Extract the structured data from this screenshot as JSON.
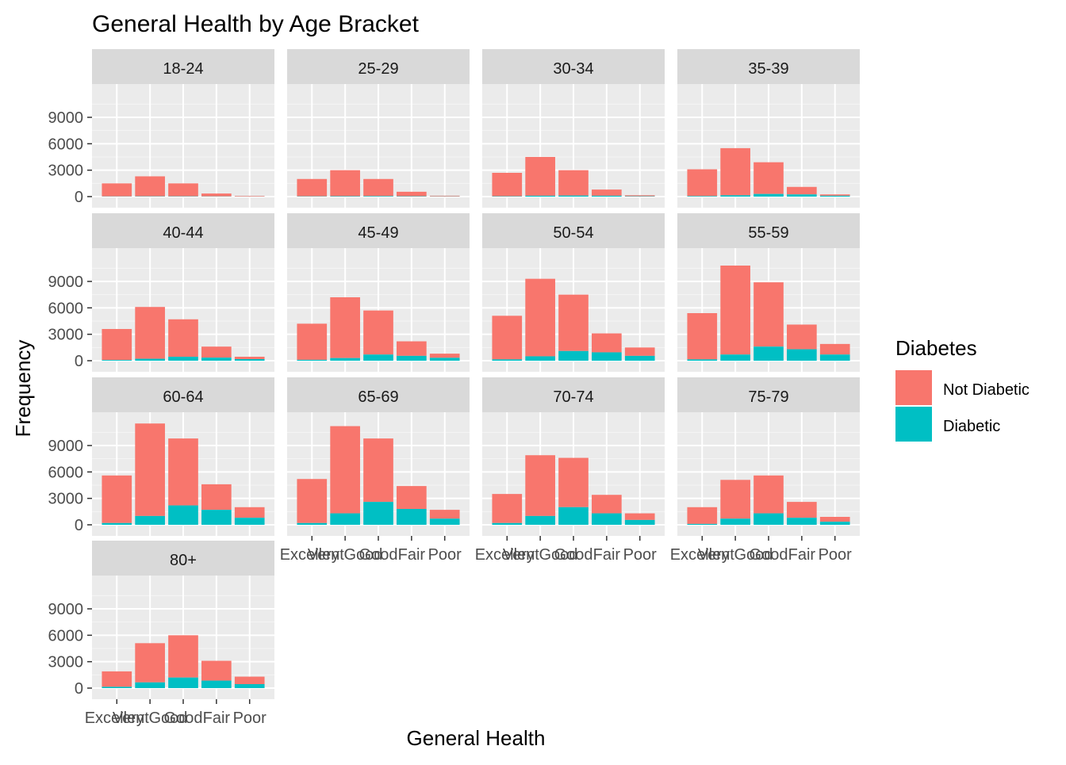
{
  "chart_data": {
    "type": "bar",
    "stacked": true,
    "faceted": true,
    "title": "General Health by Age Bracket",
    "xlabel": "General Health",
    "ylabel": "Frequency",
    "legend": {
      "title": "Diabetes",
      "placement": "right",
      "entries": [
        {
          "name": "Not Diabetic",
          "color": "#F8766D"
        },
        {
          "name": "Diabetic",
          "color": "#00BFC4"
        }
      ]
    },
    "categories": [
      "Excellent",
      "Very Good",
      "Good",
      "Fair",
      "Poor"
    ],
    "y_ticks": [
      "0",
      "3000",
      "6000",
      "9000"
    ],
    "ylim": [
      0,
      12000
    ],
    "grid": true,
    "series_names": [
      "Not Diabetic",
      "Diabetic"
    ],
    "facets": [
      {
        "label": "18-24",
        "totals": [
          1500,
          2300,
          1500,
          350,
          80
        ],
        "diabetic": [
          20,
          30,
          30,
          20,
          10
        ]
      },
      {
        "label": "25-29",
        "totals": [
          2000,
          3000,
          2000,
          550,
          100
        ],
        "diabetic": [
          30,
          50,
          60,
          40,
          20
        ]
      },
      {
        "label": "30-34",
        "totals": [
          2700,
          4500,
          3000,
          800,
          150
        ],
        "diabetic": [
          40,
          100,
          120,
          100,
          40
        ]
      },
      {
        "label": "35-39",
        "totals": [
          3100,
          5500,
          3900,
          1100,
          250
        ],
        "diabetic": [
          60,
          150,
          300,
          250,
          100
        ]
      },
      {
        "label": "40-44",
        "totals": [
          3600,
          6100,
          4700,
          1600,
          450
        ],
        "diabetic": [
          80,
          220,
          450,
          350,
          180
        ]
      },
      {
        "label": "45-49",
        "totals": [
          4200,
          7200,
          5700,
          2200,
          800
        ],
        "diabetic": [
          100,
          300,
          700,
          550,
          330
        ]
      },
      {
        "label": "50-54",
        "totals": [
          5100,
          9300,
          7500,
          3100,
          1500
        ],
        "diabetic": [
          150,
          500,
          1100,
          950,
          550
        ]
      },
      {
        "label": "55-59",
        "totals": [
          5400,
          10800,
          8900,
          4100,
          1900
        ],
        "diabetic": [
          150,
          700,
          1600,
          1300,
          700
        ]
      },
      {
        "label": "60-64",
        "totals": [
          5600,
          11500,
          9800,
          4600,
          2000
        ],
        "diabetic": [
          200,
          1000,
          2200,
          1700,
          800
        ]
      },
      {
        "label": "65-69",
        "totals": [
          5200,
          11200,
          9800,
          4400,
          1700
        ],
        "diabetic": [
          200,
          1300,
          2600,
          1800,
          700
        ]
      },
      {
        "label": "70-74",
        "totals": [
          3500,
          7900,
          7600,
          3400,
          1300
        ],
        "diabetic": [
          200,
          1000,
          2000,
          1300,
          550
        ]
      },
      {
        "label": "75-79",
        "totals": [
          2000,
          5100,
          5600,
          2600,
          900
        ],
        "diabetic": [
          100,
          700,
          1300,
          800,
          350
        ]
      },
      {
        "label": "80+",
        "totals": [
          1900,
          5100,
          6000,
          3100,
          1300
        ],
        "diabetic": [
          150,
          650,
          1200,
          850,
          450
        ]
      }
    ]
  }
}
